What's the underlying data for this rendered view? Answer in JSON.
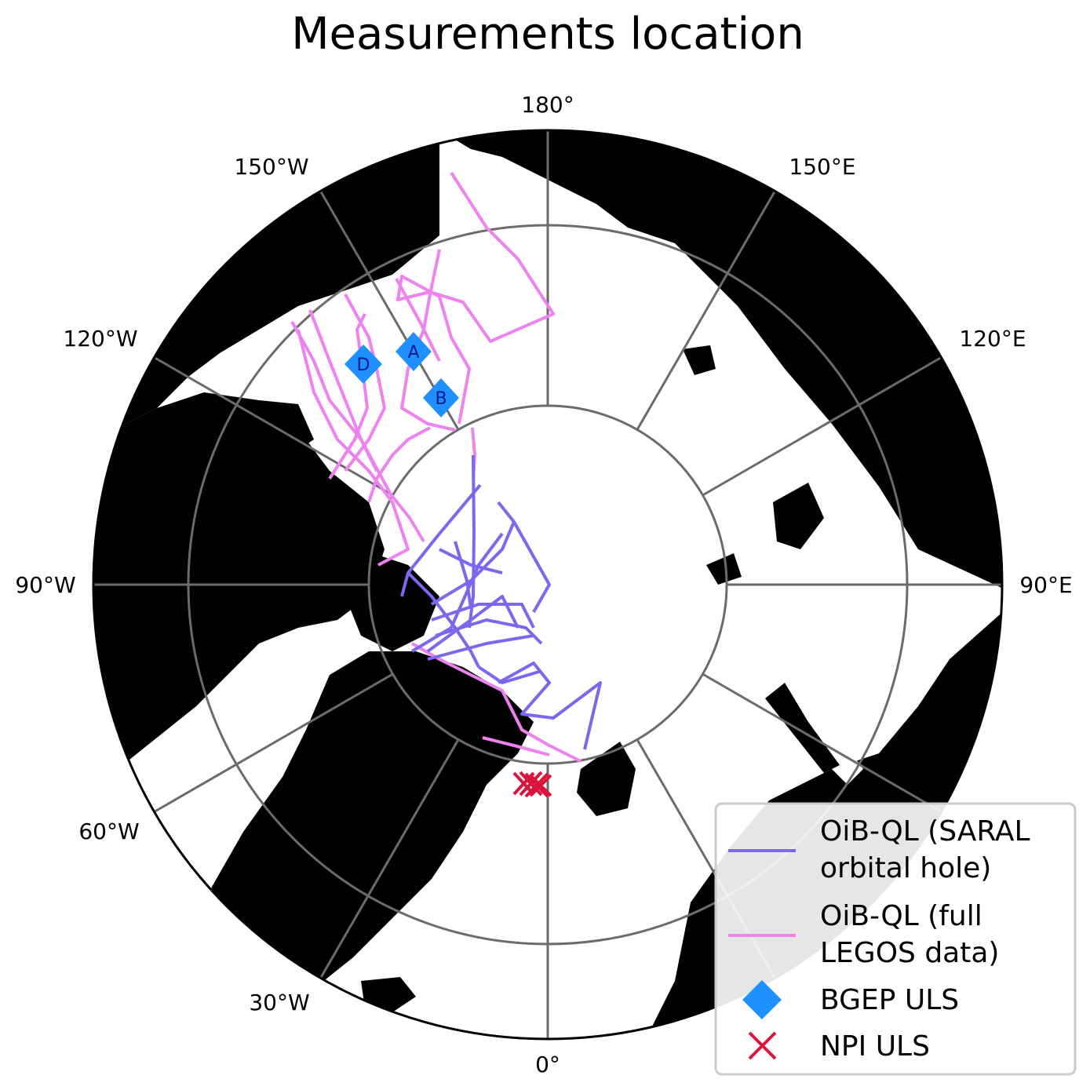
{
  "title": "Measurements location",
  "longitude_labels": [
    "180°",
    "150°E",
    "120°E",
    "90°E",
    "0°",
    "30°W",
    "60°W",
    "90°W",
    "120°W",
    "150°W"
  ],
  "colors": {
    "land": "#000000",
    "grid": "#6b6b6b",
    "oib_saral": "#7b68ee",
    "oib_full": "#ee82ee",
    "bgep": "#1e90ff",
    "npi": "#dc143c"
  },
  "stations": [
    {
      "letter": "A"
    },
    {
      "letter": "B"
    },
    {
      "letter": "D"
    }
  ],
  "legend": {
    "saral_line1": "OiB-QL (SARAL",
    "saral_line2": "orbital hole)",
    "full_line1": "OiB-QL (full",
    "full_line2": "LEGOS data)",
    "bgep": "BGEP ULS",
    "npi": "NPI ULS"
  }
}
